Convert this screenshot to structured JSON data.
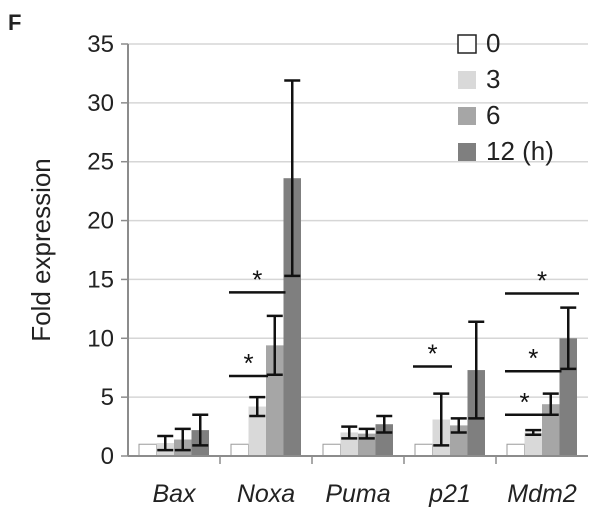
{
  "panel_label": "F",
  "chart_data": {
    "type": "bar",
    "title": "",
    "ylabel": "Fold expression",
    "xlabel": "",
    "ylim": [
      0,
      35
    ],
    "yticks": [
      0,
      5,
      10,
      15,
      20,
      25,
      30,
      35
    ],
    "grid": true,
    "legend_position": "top-right",
    "categories": [
      "Bax",
      "Noxa",
      "Puma",
      "p21",
      "Mdm2"
    ],
    "series": [
      {
        "name": "0",
        "color": "#ffffff",
        "values": [
          1,
          1,
          1,
          1,
          1
        ],
        "errors": [
          0,
          0,
          0,
          0,
          0
        ]
      },
      {
        "name": "3",
        "color": "#d9d9d9",
        "values": [
          1.1,
          4.2,
          2.0,
          3.1,
          2.0
        ],
        "errors": [
          0.6,
          0.8,
          0.5,
          2.2,
          0.2
        ]
      },
      {
        "name": "6",
        "color": "#a6a6a6",
        "values": [
          1.4,
          9.4,
          1.9,
          2.6,
          4.4
        ],
        "errors": [
          0.9,
          2.5,
          0.4,
          0.6,
          0.9
        ]
      },
      {
        "name": "12 (h)",
        "color": "#7f7f7f",
        "values": [
          2.2,
          23.6,
          2.7,
          7.3,
          10.0
        ],
        "errors": [
          1.3,
          8.3,
          0.7,
          4.1,
          2.6
        ]
      }
    ],
    "significance": [
      {
        "category": "Noxa",
        "from_series": 0,
        "to_series": 1,
        "y": 6.8,
        "label": "*"
      },
      {
        "category": "Noxa",
        "from_series": 0,
        "to_series": 2,
        "y": 13.9,
        "label": "*"
      },
      {
        "category": "p21",
        "from_series": 0,
        "to_series": 1,
        "y": 7.6,
        "label": "*"
      },
      {
        "category": "Mdm2",
        "from_series": 0,
        "to_series": 1,
        "y": 3.5,
        "label": "*"
      },
      {
        "category": "Mdm2",
        "from_series": 0,
        "to_series": 2,
        "y": 7.2,
        "label": "*"
      },
      {
        "category": "Mdm2",
        "from_series": 0,
        "to_series": 3,
        "y": 13.8,
        "label": "*"
      }
    ]
  }
}
